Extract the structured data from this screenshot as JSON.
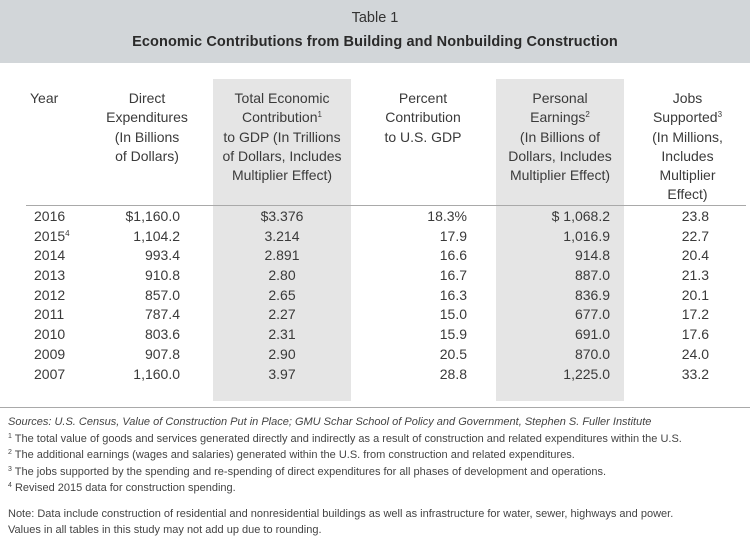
{
  "table": {
    "number": "Table 1",
    "title": "Economic Contributions from Building and Nonbuilding Construction",
    "headers": {
      "year": [
        "Year"
      ],
      "direct": [
        "Direct",
        "Expenditures",
        "(In Billions",
        "of Dollars)"
      ],
      "total": [
        "Total Economic",
        "Contribution",
        "to GDP (In Trillions",
        "of Dollars, Includes",
        "Multiplier Effect)"
      ],
      "total_sup": "1",
      "pct": [
        "Percent",
        "Contribution",
        "to U.S. GDP"
      ],
      "pe": [
        "Personal",
        "Earnings",
        "(In Billions of",
        "Dollars, Includes",
        "Multiplier Effect)"
      ],
      "pe_sup": "2",
      "jobs": [
        "Jobs",
        "Supported",
        "(In Millions,",
        "Includes",
        "Multiplier",
        "Effect)"
      ],
      "jobs_sup": "3"
    },
    "rows": [
      {
        "year": "2016",
        "sup": "",
        "direct": "$1,160.0",
        "total": "$3.376",
        "pct": "18.3%",
        "pe": "$ 1,068.2",
        "jobs": "23.8"
      },
      {
        "year": "2015",
        "sup": "4",
        "direct": "1,104.2",
        "total": "3.214",
        "pct": "17.9",
        "pe": "1,016.9",
        "jobs": "22.7"
      },
      {
        "year": "2014",
        "sup": "",
        "direct": "993.4",
        "total": "2.891",
        "pct": "16.6",
        "pe": "914.8",
        "jobs": "20.4"
      },
      {
        "year": "2013",
        "sup": "",
        "direct": "910.8",
        "total": "2.80",
        "pct": "16.7",
        "pe": "887.0",
        "jobs": "21.3"
      },
      {
        "year": "2012",
        "sup": "",
        "direct": "857.0",
        "total": "2.65",
        "pct": "16.3",
        "pe": "836.9",
        "jobs": "20.1"
      },
      {
        "year": "2011",
        "sup": "",
        "direct": "787.4",
        "total": "2.27",
        "pct": "15.0",
        "pe": "677.0",
        "jobs": "17.2"
      },
      {
        "year": "2010",
        "sup": "",
        "direct": "803.6",
        "total": "2.31",
        "pct": "15.9",
        "pe": "691.0",
        "jobs": "17.6"
      },
      {
        "year": "2009",
        "sup": "",
        "direct": "907.8",
        "total": "2.90",
        "pct": "20.5",
        "pe": "870.0",
        "jobs": "24.0"
      },
      {
        "year": "2007",
        "sup": "",
        "direct": "1,160.0",
        "total": "3.97",
        "pct": "28.8",
        "pe": "1,225.0",
        "jobs": "33.2"
      }
    ]
  },
  "notes": {
    "sources": "Sources: U.S. Census, Value of Construction Put in Place; GMU Schar School of Policy and Government, Stephen S. Fuller Institute",
    "footnotes": [
      {
        "sup": "1",
        "text": " The total value of goods and services generated directly and indirectly as a result of construction and related expenditures within the U.S."
      },
      {
        "sup": "2",
        "text": " The additional earnings (wages and salaries) generated within the U.S. from construction and related expenditures."
      },
      {
        "sup": "3",
        "text": " The jobs supported by the spending and re-spending of direct expenditures for all phases of development and operations."
      },
      {
        "sup": "4",
        "text": " Revised 2015 data for construction spending."
      }
    ],
    "note_lines": [
      "Note: Data include construction of residential and nonresidential buildings as well as infrastructure for water, sewer, highways and power.",
      "Values in all tables in this study may not add up due to rounding."
    ]
  }
}
